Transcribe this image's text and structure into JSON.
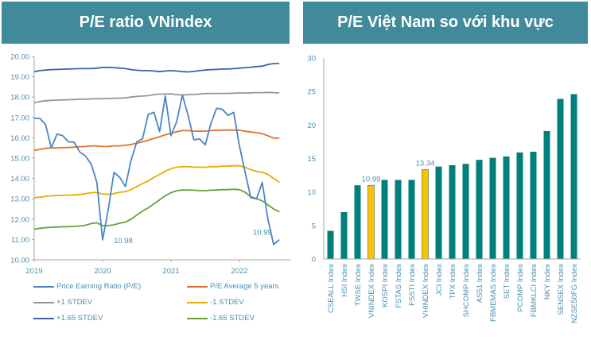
{
  "panels": {
    "left_title": "P/E ratio VNindex",
    "right_title": "P/E Việt Nam so với khu vực"
  },
  "chart_data": [
    {
      "type": "line",
      "title": "P/E ratio VNindex",
      "xlabel": "",
      "ylabel": "",
      "ylim": [
        10,
        20
      ],
      "yticks": [
        "10.00",
        "11.00",
        "12.00",
        "13.00",
        "14.00",
        "15.00",
        "16.00",
        "17.00",
        "18.00",
        "19.00",
        "20.00"
      ],
      "xticks": [
        "2019",
        "2020",
        "2021",
        "2022"
      ],
      "x_start": "2019-01",
      "x_step": "month",
      "legend_position": "bottom",
      "series": [
        {
          "name": "Price Earning Ratio (P/E)",
          "color": "#4a86c5",
          "values": [
            16.95,
            16.95,
            16.65,
            15.5,
            16.18,
            16.1,
            15.8,
            15.78,
            15.3,
            15.1,
            14.7,
            13.8,
            10.98,
            12.5,
            14.3,
            14.05,
            13.6,
            14.9,
            15.8,
            15.95,
            17.15,
            17.25,
            16.3,
            18.05,
            16.1,
            16.8,
            18.1,
            17.1,
            15.9,
            15.95,
            15.65,
            16.7,
            17.45,
            17.4,
            17.1,
            17.25,
            15.6,
            14.3,
            13.05,
            13.0,
            13.8,
            12.0,
            10.75,
            10.99
          ]
        },
        {
          "name": "P/E Average 5 years",
          "color": "#e2712e",
          "values": [
            15.38,
            15.43,
            15.48,
            15.5,
            15.5,
            15.51,
            15.52,
            15.54,
            15.56,
            15.57,
            15.6,
            15.6,
            15.57,
            15.57,
            15.6,
            15.6,
            15.63,
            15.67,
            15.73,
            15.8,
            15.88,
            15.97,
            16.05,
            16.15,
            16.22,
            16.3,
            16.35,
            16.35,
            16.33,
            16.32,
            16.33,
            16.35,
            16.37,
            16.38,
            16.38,
            16.37,
            16.37,
            16.32,
            16.28,
            16.25,
            16.2,
            16.1,
            15.98,
            15.98
          ]
        },
        {
          "name": "+1 STDEV",
          "color": "#969696",
          "values": [
            17.72,
            17.78,
            17.82,
            17.84,
            17.85,
            17.86,
            17.87,
            17.88,
            17.89,
            17.9,
            17.91,
            17.92,
            17.92,
            17.93,
            17.94,
            17.95,
            17.96,
            18.0,
            18.03,
            18.05,
            18.07,
            18.12,
            18.15,
            18.15,
            18.16,
            18.12,
            18.1,
            18.12,
            18.13,
            18.15,
            18.17,
            18.18,
            18.18,
            18.18,
            18.18,
            18.19,
            18.2,
            18.2,
            18.21,
            18.22,
            18.22,
            18.23,
            18.22,
            18.2
          ]
        },
        {
          "name": "-1 STDEV",
          "color": "#e8ad00",
          "values": [
            13.05,
            13.08,
            13.12,
            13.15,
            13.16,
            13.17,
            13.18,
            13.19,
            13.21,
            13.25,
            13.3,
            13.31,
            13.23,
            13.22,
            13.25,
            13.32,
            13.35,
            13.45,
            13.6,
            13.75,
            13.88,
            14.05,
            14.2,
            14.35,
            14.48,
            14.55,
            14.58,
            14.58,
            14.56,
            14.55,
            14.55,
            14.58,
            14.58,
            14.6,
            14.6,
            14.62,
            14.62,
            14.55,
            14.43,
            14.35,
            14.3,
            14.2,
            14.0,
            13.8
          ]
        },
        {
          "name": "+1.65 STDEV",
          "color": "#3c62b0",
          "values": [
            19.25,
            19.3,
            19.33,
            19.35,
            19.36,
            19.37,
            19.38,
            19.39,
            19.4,
            19.4,
            19.4,
            19.42,
            19.46,
            19.46,
            19.45,
            19.42,
            19.4,
            19.35,
            19.32,
            19.3,
            19.3,
            19.28,
            19.25,
            19.28,
            19.3,
            19.28,
            19.25,
            19.24,
            19.26,
            19.3,
            19.33,
            19.35,
            19.36,
            19.38,
            19.38,
            19.4,
            19.42,
            19.45,
            19.47,
            19.5,
            19.52,
            19.6,
            19.65,
            19.65
          ]
        },
        {
          "name": "-1.65 STDEV",
          "color": "#66a03c",
          "values": [
            11.5,
            11.55,
            11.58,
            11.6,
            11.61,
            11.62,
            11.63,
            11.64,
            11.66,
            11.7,
            11.78,
            11.82,
            11.68,
            11.68,
            11.72,
            11.8,
            11.85,
            12.0,
            12.2,
            12.4,
            12.55,
            12.75,
            12.95,
            13.15,
            13.3,
            13.4,
            13.43,
            13.43,
            13.42,
            13.4,
            13.4,
            13.42,
            13.43,
            13.45,
            13.45,
            13.47,
            13.45,
            13.32,
            13.1,
            13.0,
            12.9,
            12.7,
            12.5,
            12.35
          ]
        }
      ],
      "annotations": [
        {
          "text": "10.98",
          "x": "2020-01",
          "y": 10.98
        },
        {
          "text": "10.99",
          "x": "2022-08",
          "y": 10.99
        }
      ]
    },
    {
      "type": "bar",
      "title": "P/E Việt Nam so với khu vực",
      "xlabel": "",
      "ylabel": "",
      "ylim": [
        0,
        30
      ],
      "yticks": [
        "0",
        "5",
        "10",
        "15",
        "20",
        "25",
        "30"
      ],
      "categories": [
        "CSEALL Index",
        "HSI Index",
        "TWSE Index",
        "VNINDEX Index",
        "KOSPI Index",
        "FSTAS Index",
        "FSSTI Index",
        "VHINDEX Index",
        "JCI Index",
        "TPX Index",
        "SHCOMP Index",
        "AS51 Index",
        "FBMEMAS Index",
        "SET Index",
        "PCOMP Index",
        "FBMKLCI Index",
        "NKY Index",
        "SENSEX Index",
        "NZSE50FG Index"
      ],
      "values": [
        4.2,
        7.0,
        11.0,
        10.99,
        11.8,
        11.8,
        11.8,
        13.34,
        13.8,
        14.0,
        14.2,
        14.8,
        15.1,
        15.3,
        15.9,
        16.0,
        19.1,
        23.9,
        24.6
      ],
      "highlight": [
        "VNINDEX Index",
        "VHINDEX Index"
      ],
      "data_labels": {
        "VNINDEX Index": "10.99",
        "VHINDEX Index": "13.34"
      },
      "colors": {
        "default": "#007f7b",
        "highlight": "#ffc000"
      }
    }
  ]
}
